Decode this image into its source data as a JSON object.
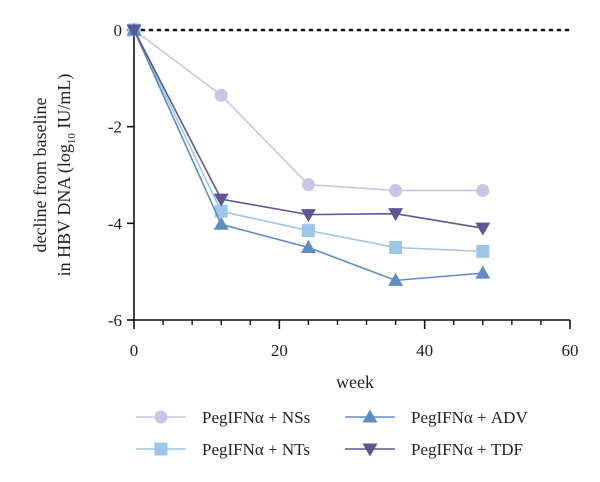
{
  "chart_data": {
    "type": "line",
    "xlabel": "week",
    "ylabel_line1": "decline from baseline",
    "ylabel_line2_prefix": "in HBV DNA (log",
    "ylabel_line2_sub": "10",
    "ylabel_line2_suffix": " IU/mL)",
    "xlim": [
      0,
      60
    ],
    "ylim": [
      -6,
      0
    ],
    "x_ticks": [
      0,
      20,
      40,
      60
    ],
    "y_ticks": [
      0,
      -2,
      -4,
      -6
    ],
    "x_tick_labels": [
      "0",
      "20",
      "40",
      "60"
    ],
    "y_tick_labels": [
      "0",
      "-2",
      "-4",
      "-6"
    ],
    "x_minor_step": 4,
    "baseline_dotted_y": 0,
    "legend_position": "bottom",
    "series": [
      {
        "name": "PegIFNα + NSs",
        "marker": "circle",
        "color": "#c9c5e3",
        "x": [
          0,
          12,
          24,
          36,
          48
        ],
        "y": [
          0,
          -1.35,
          -3.2,
          -3.32,
          -3.32
        ]
      },
      {
        "name": "PegIFNα + NTs",
        "marker": "square",
        "color": "#9ec6e8",
        "x": [
          0,
          12,
          24,
          36,
          48
        ],
        "y": [
          0,
          -3.75,
          -4.15,
          -4.5,
          -4.58
        ]
      },
      {
        "name": "PegIFNα + ADV",
        "marker": "triangle-up",
        "color": "#5f8cc4",
        "x": [
          0,
          12,
          24,
          36,
          48
        ],
        "y": [
          0,
          -4.02,
          -4.5,
          -5.18,
          -5.03
        ]
      },
      {
        "name": "PegIFNα + TDF",
        "marker": "triangle-down",
        "color": "#5c5894",
        "x": [
          0,
          12,
          24,
          36,
          48
        ],
        "y": [
          0,
          -3.5,
          -3.82,
          -3.8,
          -4.1
        ]
      }
    ]
  }
}
